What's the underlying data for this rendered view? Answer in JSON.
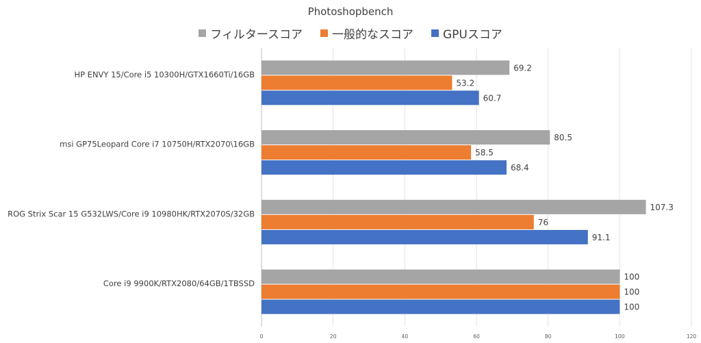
{
  "chart_data": {
    "type": "bar",
    "orientation": "horizontal",
    "title": "Photoshopbench",
    "categories": [
      "HP ENVY 15/Core i5 10300H/GTX1660Ti/16GB",
      "msi GP75Leopard Core i7 10750H/RTX2070\\16GB",
      "ROG Strix Scar 15 G532LWS/Core i9 10980HK/RTX2070S/32GB",
      "Core i9 9900K/RTX2080/64GB/1TBSSD"
    ],
    "series": [
      {
        "name": "フィルタースコア",
        "color": "#a5a5a5",
        "values": [
          69.2,
          80.5,
          107.3,
          100
        ]
      },
      {
        "name": "一般的なスコア",
        "color": "#ed7d31",
        "values": [
          53.2,
          58.5,
          76,
          100
        ]
      },
      {
        "name": "GPUスコア",
        "color": "#4472c4",
        "values": [
          60.7,
          68.4,
          91.1,
          100
        ]
      }
    ],
    "xlim": [
      0,
      120
    ],
    "xticks": [
      0,
      20,
      40,
      60,
      80,
      100,
      120
    ],
    "grid": true,
    "legend_position": "top"
  }
}
